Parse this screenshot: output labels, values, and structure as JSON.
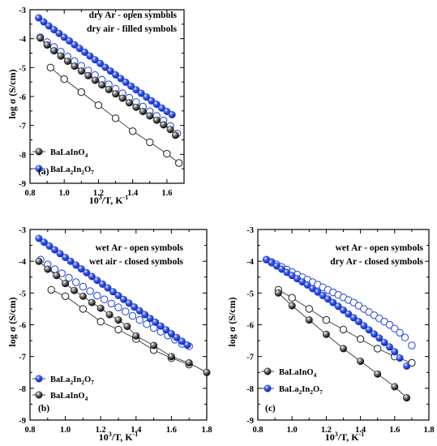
{
  "chart_data": [
    {
      "type": "scatter",
      "panel_label": "(a)",
      "annotations": [
        "dry Ar - open symbols",
        "dry air - filled symbols"
      ],
      "xlabel": "10^3/T, K^-1",
      "ylabel": "log σ (S/cm)",
      "xlim": [
        0.8,
        1.7
      ],
      "ylim": [
        -9,
        -3
      ],
      "xticks": [
        "0.8",
        "1.0",
        "1.2",
        "1.4",
        "1.6"
      ],
      "yticks": [
        "-9",
        "-8",
        "-7",
        "-6",
        "-5",
        "-4",
        "-3"
      ],
      "legend": [
        {
          "label_main": "BaLaInO",
          "label_sub": "4",
          "color": "#1a1a1a"
        },
        {
          "label_main": "BaLa",
          "label_sub": "2",
          "label_main2": "In",
          "label_sub2": "2",
          "label_main3": "O",
          "label_sub3": "7",
          "color": "#1f3fd6"
        }
      ],
      "series": [
        {
          "material": "BaLaInO4",
          "atmosphere": "dry Ar",
          "style": "open",
          "line": true,
          "color": "#1a1a1a",
          "x": [
            0.92,
            1.0,
            1.1,
            1.2,
            1.3,
            1.4,
            1.5,
            1.6,
            1.67
          ],
          "y": [
            -5.0,
            -5.4,
            -5.85,
            -6.3,
            -6.75,
            -7.2,
            -7.58,
            -7.98,
            -8.3
          ]
        },
        {
          "material": "BaLaInO4",
          "atmosphere": "dry air",
          "style": "filled",
          "line": true,
          "color": "#1a1a1a",
          "x": [
            0.86,
            0.9,
            0.94,
            0.98,
            1.02,
            1.06,
            1.1,
            1.14,
            1.18,
            1.22,
            1.26,
            1.3,
            1.34,
            1.38,
            1.42,
            1.46,
            1.5,
            1.54,
            1.58,
            1.62,
            1.65
          ],
          "y": [
            -3.98,
            -4.22,
            -4.42,
            -4.6,
            -4.78,
            -4.95,
            -5.12,
            -5.28,
            -5.44,
            -5.6,
            -5.76,
            -5.91,
            -6.06,
            -6.22,
            -6.37,
            -6.52,
            -6.67,
            -6.82,
            -6.98,
            -7.14,
            -7.34
          ]
        },
        {
          "material": "BaLa2In2O7",
          "atmosphere": "dry Ar",
          "style": "open",
          "line": false,
          "color": "#1f3fd6",
          "x": [
            0.86,
            0.9,
            0.94,
            0.98,
            1.02,
            1.06,
            1.1,
            1.14,
            1.18,
            1.22,
            1.26,
            1.3,
            1.34,
            1.38,
            1.42,
            1.46,
            1.5,
            1.54,
            1.58,
            1.62,
            1.66
          ],
          "y": [
            -3.95,
            -4.12,
            -4.29,
            -4.45,
            -4.62,
            -4.78,
            -4.94,
            -5.1,
            -5.26,
            -5.42,
            -5.58,
            -5.73,
            -5.89,
            -6.04,
            -6.19,
            -6.35,
            -6.51,
            -6.67,
            -6.83,
            -7.02,
            -7.28
          ]
        },
        {
          "material": "BaLa2In2O7",
          "atmosphere": "dry air",
          "style": "filled",
          "line": false,
          "color": "#1f3fd6",
          "x": [
            0.85,
            0.88,
            0.91,
            0.94,
            0.97,
            1.0,
            1.03,
            1.06,
            1.09,
            1.12,
            1.15,
            1.18,
            1.21,
            1.24,
            1.27,
            1.3,
            1.33,
            1.36,
            1.39,
            1.42,
            1.45,
            1.48,
            1.51,
            1.54,
            1.57,
            1.6,
            1.63
          ],
          "y": [
            -3.28,
            -3.42,
            -3.56,
            -3.69,
            -3.82,
            -3.95,
            -4.08,
            -4.21,
            -4.34,
            -4.47,
            -4.6,
            -4.73,
            -4.86,
            -4.99,
            -5.12,
            -5.25,
            -5.38,
            -5.51,
            -5.64,
            -5.77,
            -5.89,
            -6.02,
            -6.15,
            -6.27,
            -6.4,
            -6.52,
            -6.63
          ]
        }
      ]
    },
    {
      "type": "scatter",
      "panel_label": "(b)",
      "annotations": [
        "wet Ar - open symbols",
        "wet air - closed symbols"
      ],
      "xlabel": "10^3/T, K^-1",
      "ylabel": "log σ (S/cm)",
      "xlim": [
        0.8,
        1.8
      ],
      "ylim": [
        -9,
        -3
      ],
      "xticks": [
        "0.8",
        "1.0",
        "1.2",
        "1.4",
        "1.6",
        "1.8"
      ],
      "yticks": [
        "-9",
        "-8",
        "-7",
        "-6",
        "-5",
        "-4",
        "-3"
      ],
      "legend": [
        {
          "label_main": "BaLa",
          "label_sub": "2",
          "label_main2": "In",
          "label_sub2": "2",
          "label_main3": "O",
          "label_sub3": "7",
          "color": "#1f3fd6"
        },
        {
          "label_main": "BaLaInO",
          "label_sub": "4",
          "color": "#1a1a1a"
        }
      ],
      "series": [
        {
          "material": "BaLaInO4",
          "atmosphere": "wet Ar",
          "style": "open",
          "line": true,
          "color": "#1a1a1a",
          "x": [
            0.92,
            1.0,
            1.1,
            1.2,
            1.3,
            1.4,
            1.5,
            1.6,
            1.7
          ],
          "y": [
            -4.9,
            -5.1,
            -5.5,
            -5.9,
            -6.15,
            -6.45,
            -6.8,
            -7.05,
            -7.25
          ]
        },
        {
          "material": "BaLaInO4",
          "atmosphere": "wet air",
          "style": "filled",
          "line": true,
          "color": "#1a1a1a",
          "x": [
            0.85,
            0.9,
            0.95,
            1.0,
            1.05,
            1.1,
            1.15,
            1.2,
            1.25,
            1.3,
            1.35,
            1.4,
            1.5,
            1.6,
            1.7,
            1.8
          ],
          "y": [
            -4.0,
            -4.25,
            -4.45,
            -4.7,
            -4.92,
            -5.1,
            -5.3,
            -5.48,
            -5.68,
            -5.85,
            -6.05,
            -6.35,
            -6.65,
            -7.0,
            -7.2,
            -7.5
          ]
        },
        {
          "material": "BaLa2In2O7",
          "atmosphere": "wet Ar",
          "style": "open",
          "line": false,
          "color": "#1f3fd6",
          "x": [
            0.86,
            0.9,
            0.94,
            0.98,
            1.02,
            1.06,
            1.1,
            1.14,
            1.18,
            1.22,
            1.26,
            1.3,
            1.34,
            1.38,
            1.42,
            1.46,
            1.5,
            1.54,
            1.58,
            1.62,
            1.66,
            1.7
          ],
          "y": [
            -3.95,
            -4.1,
            -4.25,
            -4.38,
            -4.52,
            -4.66,
            -4.8,
            -4.94,
            -5.08,
            -5.2,
            -5.33,
            -5.45,
            -5.58,
            -5.72,
            -5.85,
            -5.98,
            -6.1,
            -6.22,
            -6.34,
            -6.47,
            -6.6,
            -6.68
          ]
        },
        {
          "material": "BaLa2In2O7",
          "atmosphere": "wet air",
          "style": "filled",
          "line": false,
          "color": "#1f3fd6",
          "x": [
            0.85,
            0.88,
            0.91,
            0.94,
            0.97,
            1.0,
            1.03,
            1.06,
            1.09,
            1.12,
            1.15,
            1.18,
            1.21,
            1.24,
            1.27,
            1.3,
            1.33,
            1.36,
            1.39,
            1.42,
            1.45,
            1.48,
            1.51,
            1.54,
            1.57,
            1.6,
            1.63,
            1.66,
            1.69
          ],
          "y": [
            -3.28,
            -3.4,
            -3.52,
            -3.64,
            -3.76,
            -3.88,
            -4.0,
            -4.12,
            -4.24,
            -4.36,
            -4.48,
            -4.6,
            -4.72,
            -4.84,
            -4.96,
            -5.08,
            -5.2,
            -5.32,
            -5.44,
            -5.56,
            -5.68,
            -5.8,
            -5.92,
            -6.04,
            -6.16,
            -6.28,
            -6.4,
            -6.52,
            -6.64
          ]
        }
      ]
    },
    {
      "type": "scatter",
      "panel_label": "(c)",
      "annotations": [
        "wet Ar - open symbols",
        "dry Ar - closed symbols"
      ],
      "xlabel": "10^3/T, K^-1",
      "ylabel": "log σ (S/cm)",
      "xlim": [
        0.8,
        1.8
      ],
      "ylim": [
        -9,
        -3
      ],
      "xticks": [
        "0.8",
        "1.0",
        "1.2",
        "1.4",
        "1.6",
        "1.8"
      ],
      "yticks": [
        "-9",
        "-8",
        "-7",
        "-6",
        "-5",
        "-4",
        "-3"
      ],
      "legend": [
        {
          "label_main": "BaLaInO",
          "label_sub": "4",
          "color": "#1a1a1a"
        },
        {
          "label_main": "BaLa",
          "label_sub": "2",
          "label_main2": "In",
          "label_sub2": "2",
          "label_main3": "O",
          "label_sub3": "7",
          "color": "#1f3fd6"
        }
      ],
      "series": [
        {
          "material": "BaLaInO4",
          "atmosphere": "wet Ar",
          "style": "open",
          "line": true,
          "color": "#1a1a1a",
          "x": [
            0.92,
            1.0,
            1.1,
            1.2,
            1.3,
            1.4,
            1.5,
            1.6,
            1.7
          ],
          "y": [
            -4.9,
            -5.15,
            -5.5,
            -5.85,
            -6.15,
            -6.45,
            -6.75,
            -7.0,
            -7.2
          ]
        },
        {
          "material": "BaLaInO4",
          "atmosphere": "dry Ar",
          "style": "filled",
          "line": true,
          "color": "#1a1a1a",
          "x": [
            0.92,
            1.0,
            1.1,
            1.2,
            1.3,
            1.4,
            1.5,
            1.6,
            1.67
          ],
          "y": [
            -5.0,
            -5.4,
            -5.85,
            -6.3,
            -6.75,
            -7.15,
            -7.55,
            -7.95,
            -8.3
          ]
        },
        {
          "material": "BaLa2In2O7",
          "atmosphere": "wet Ar",
          "style": "open",
          "line": false,
          "color": "#1f3fd6",
          "x": [
            0.85,
            0.88,
            0.91,
            0.94,
            0.97,
            1.0,
            1.03,
            1.06,
            1.09,
            1.12,
            1.15,
            1.18,
            1.21,
            1.24,
            1.27,
            1.3,
            1.33,
            1.36,
            1.39,
            1.42,
            1.45,
            1.48,
            1.51,
            1.54,
            1.57,
            1.6,
            1.63,
            1.66,
            1.7
          ],
          "y": [
            -3.95,
            -4.02,
            -4.1,
            -4.18,
            -4.26,
            -4.34,
            -4.42,
            -4.5,
            -4.58,
            -4.66,
            -4.74,
            -4.82,
            -4.9,
            -4.98,
            -5.06,
            -5.14,
            -5.22,
            -5.3,
            -5.4,
            -5.5,
            -5.6,
            -5.7,
            -5.8,
            -5.9,
            -6.0,
            -6.12,
            -6.25,
            -6.4,
            -6.65
          ]
        },
        {
          "material": "BaLa2In2O7",
          "atmosphere": "dry Ar",
          "style": "filled",
          "line": false,
          "color": "#1f3fd6",
          "x": [
            0.85,
            0.88,
            0.91,
            0.94,
            0.97,
            1.0,
            1.03,
            1.06,
            1.09,
            1.12,
            1.15,
            1.18,
            1.21,
            1.24,
            1.27,
            1.3,
            1.33,
            1.36,
            1.39,
            1.42,
            1.45,
            1.48,
            1.51,
            1.54,
            1.57,
            1.6,
            1.63,
            1.67
          ],
          "y": [
            -3.95,
            -4.05,
            -4.15,
            -4.25,
            -4.35,
            -4.45,
            -4.55,
            -4.65,
            -4.75,
            -4.86,
            -4.97,
            -5.08,
            -5.19,
            -5.3,
            -5.42,
            -5.54,
            -5.66,
            -5.78,
            -5.9,
            -6.03,
            -6.16,
            -6.29,
            -6.42,
            -6.56,
            -6.7,
            -6.85,
            -7.05,
            -7.3
          ]
        }
      ]
    }
  ]
}
